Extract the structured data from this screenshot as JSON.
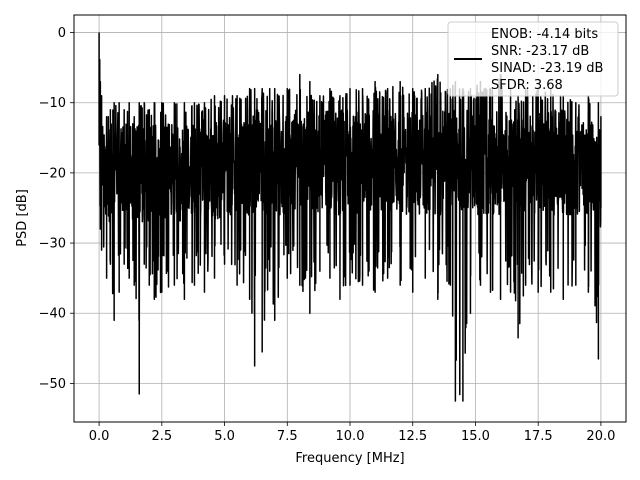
{
  "chart_data": {
    "type": "line",
    "title": "",
    "xlabel": "Frequency [MHz]",
    "ylabel": "PSD [dB]",
    "xlim": [
      -1.0,
      21.0
    ],
    "ylim": [
      -55.5,
      2.5
    ],
    "xticks": [
      0.0,
      2.5,
      5.0,
      7.5,
      10.0,
      12.5,
      15.0,
      17.5,
      20.0
    ],
    "xtick_labels": [
      "0.0",
      "2.5",
      "5.0",
      "7.5",
      "10.0",
      "12.5",
      "15.0",
      "17.5",
      "20.0"
    ],
    "yticks": [
      0,
      -10,
      -20,
      -30,
      -40,
      -50
    ],
    "ytick_labels": [
      "0",
      "−10",
      "−20",
      "−30",
      "−40",
      "−50"
    ],
    "grid": true,
    "legend_position": "top-right",
    "series": [
      {
        "color": "#000000",
        "x": [
          0.0,
          0.05,
          0.1,
          0.3,
          0.45,
          0.6,
          0.8,
          1.0,
          1.2,
          1.4,
          1.6,
          1.8,
          2.0,
          2.2,
          2.5,
          3.0,
          3.4,
          3.8,
          4.2,
          4.6,
          5.0,
          5.5,
          6.0,
          6.2,
          6.5,
          6.8,
          7.0,
          7.5,
          8.0,
          8.4,
          8.8,
          9.2,
          9.6,
          10.0,
          10.5,
          11.0,
          11.5,
          12.0,
          12.5,
          13.0,
          13.5,
          14.0,
          14.2,
          14.5,
          14.8,
          15.2,
          15.6,
          16.0,
          16.4,
          16.7,
          17.0,
          17.5,
          18.0,
          18.5,
          19.0,
          19.5,
          19.9,
          20.0
        ],
        "upper": [
          0.0,
          -7,
          -9,
          -12,
          -11,
          -10,
          -10,
          -11,
          -10,
          -12,
          -10,
          -10,
          -11,
          -10,
          -10,
          -10,
          -10,
          -10,
          -10,
          -9,
          -9,
          -9,
          -8,
          -8,
          -8,
          -8,
          -8,
          -8,
          -6,
          -7,
          -9,
          -8,
          -9,
          -8,
          -8,
          -7,
          -8,
          -7,
          -8,
          -8,
          -6,
          -8,
          -7,
          -8,
          -8,
          -7,
          -8,
          -6,
          -8,
          -9,
          -8,
          -8,
          -8,
          -9,
          -10,
          -9,
          -10,
          -12
        ],
        "lower": [
          -16,
          -28,
          -31,
          -35,
          -33,
          -41,
          -37,
          -33,
          -35,
          -36,
          -51.5,
          -33,
          -36,
          -38,
          -37,
          -36,
          -38,
          -36,
          -37,
          -35,
          -33,
          -36,
          -38,
          -47.5,
          -45.5,
          -34,
          -41,
          -35,
          -36,
          -40,
          -34,
          -35,
          -38,
          -36,
          -36,
          -37,
          -35,
          -36,
          -37,
          -35,
          -38,
          -36,
          -52.5,
          -52.5,
          -40,
          -36,
          -37,
          -38,
          -37,
          -43.5,
          -36,
          -37,
          -37,
          -38,
          -36,
          -37,
          -46.5,
          -25
        ],
        "band_top": [
          -1,
          -12,
          -13,
          -13,
          -13,
          -13,
          -13,
          -13,
          -13,
          -13,
          -13,
          -13,
          -13,
          -13,
          -13,
          -13,
          -13,
          -13,
          -12,
          -12,
          -12,
          -12,
          -11,
          -11,
          -11,
          -11,
          -11,
          -11,
          -11,
          -11,
          -11,
          -11,
          -11,
          -11,
          -11,
          -11,
          -11,
          -11,
          -11,
          -11,
          -11,
          -11,
          -11,
          -11,
          -11,
          -11,
          -11,
          -11,
          -11,
          -11,
          -11,
          -11,
          -11,
          -11,
          -12,
          -12,
          -12,
          -13
        ],
        "band_bottom": [
          -16,
          -25,
          -26,
          -27,
          -27,
          -27,
          -27,
          -27,
          -27,
          -27,
          -27,
          -27,
          -27,
          -27,
          -27,
          -27,
          -27,
          -27,
          -27,
          -27,
          -26,
          -26,
          -26,
          -26,
          -26,
          -26,
          -26,
          -26,
          -26,
          -26,
          -26,
          -26,
          -26,
          -26,
          -26,
          -26,
          -26,
          -26,
          -26,
          -26,
          -26,
          -26,
          -26,
          -26,
          -26,
          -26,
          -26,
          -26,
          -26,
          -26,
          -26,
          -26,
          -26,
          -26,
          -26,
          -26,
          -26,
          -25
        ]
      }
    ],
    "legend": {
      "entries": [
        "ENOB: -4.14 bits",
        "SNR: -23.17 dB",
        "SINAD: -23.19 dB",
        "SFDR: 3.68"
      ]
    }
  }
}
